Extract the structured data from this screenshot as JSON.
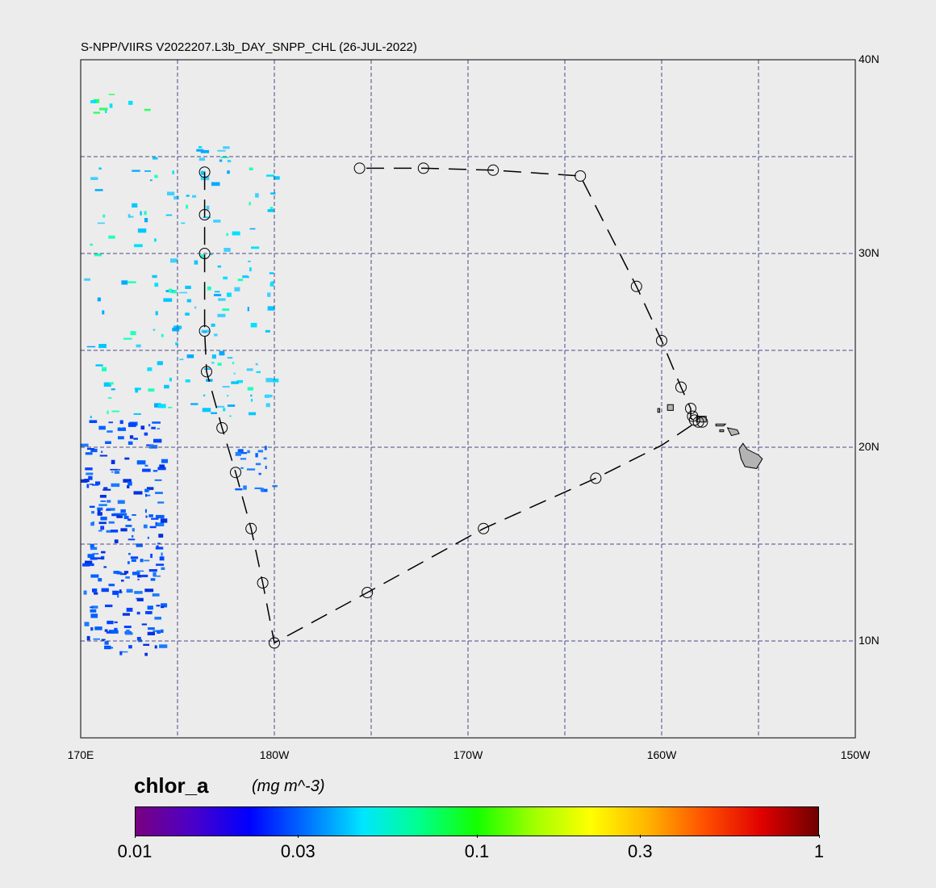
{
  "title": "S-NPP/VIIRS V2022207.L3b_DAY_SNPP_CHL (26-JUL-2022)",
  "map": {
    "lon_range": [
      170,
      210
    ],
    "lat_range": [
      5,
      40
    ],
    "lat_labels": [
      {
        "lat": 40,
        "text": "40N"
      },
      {
        "lat": 30,
        "text": "30N"
      },
      {
        "lat": 20,
        "text": "20N"
      },
      {
        "lat": 10,
        "text": "10N"
      }
    ],
    "lon_labels": [
      {
        "lon": 170,
        "text": "170E"
      },
      {
        "lon": 180,
        "text": "180W"
      },
      {
        "lon": 190,
        "text": "170W"
      },
      {
        "lon": 200,
        "text": "160W"
      },
      {
        "lon": 210,
        "text": "150W"
      }
    ],
    "grid_lons": [
      175,
      180,
      185,
      190,
      195,
      200,
      205
    ],
    "grid_lats": [
      10,
      15,
      20,
      25,
      30,
      35
    ],
    "grid_color": "#4a4a8a",
    "land_color": "#b3b3b3",
    "track": [
      [
        176.4,
        34.2
      ],
      [
        176.4,
        32.0
      ],
      [
        176.4,
        30.0
      ],
      [
        176.4,
        26.0
      ],
      [
        176.5,
        23.9
      ],
      [
        177.3,
        21.0
      ],
      [
        178.0,
        18.7
      ],
      [
        178.8,
        15.8
      ],
      [
        179.4,
        13.0
      ],
      [
        180.0,
        9.9
      ],
      [
        184.8,
        12.5
      ],
      [
        190.8,
        15.8
      ],
      [
        196.6,
        18.4
      ],
      [
        200.0,
        20.1
      ],
      [
        201.8,
        21.3
      ],
      [
        201.5,
        21.5
      ],
      [
        201.5,
        22.0
      ],
      [
        201.0,
        23.1
      ],
      [
        200.0,
        25.5
      ],
      [
        198.7,
        28.3
      ],
      [
        195.8,
        34.0
      ],
      [
        191.3,
        34.3
      ],
      [
        187.7,
        34.4
      ],
      [
        184.4,
        34.4
      ]
    ],
    "markers": [
      [
        176.4,
        34.2
      ],
      [
        176.4,
        32.0
      ],
      [
        176.4,
        30.0
      ],
      [
        176.4,
        26.0
      ],
      [
        176.5,
        23.9
      ],
      [
        177.3,
        21.0
      ],
      [
        178.0,
        18.7
      ],
      [
        178.8,
        15.8
      ],
      [
        179.4,
        13.0
      ],
      [
        180.0,
        9.9
      ],
      [
        184.8,
        12.5
      ],
      [
        190.8,
        15.8
      ],
      [
        196.6,
        18.4
      ],
      [
        201.0,
        23.1
      ],
      [
        200.0,
        25.5
      ],
      [
        198.7,
        28.3
      ],
      [
        195.8,
        34.0
      ],
      [
        191.3,
        34.3
      ],
      [
        187.7,
        34.4
      ],
      [
        184.4,
        34.4
      ],
      [
        201.5,
        22.0
      ],
      [
        201.6,
        21.6
      ],
      [
        201.7,
        21.4
      ],
      [
        201.9,
        21.3
      ],
      [
        202.1,
        21.3
      ]
    ]
  },
  "colorbar": {
    "variable": "chlor_a",
    "units": "(mg m^-3)",
    "scale": "log",
    "min": 0.01,
    "max": 1,
    "colors": [
      "#7a0080",
      "#4b00c8",
      "#0000ff",
      "#0070ff",
      "#00e6ff",
      "#00ff8c",
      "#14ff00",
      "#a0ff00",
      "#ffff00",
      "#ffb400",
      "#ff5000",
      "#e00000",
      "#700000"
    ],
    "ticks": [
      {
        "value": 0.01,
        "label": "0.01"
      },
      {
        "value": 0.03,
        "label": "0.03"
      },
      {
        "value": 0.1,
        "label": "0.1"
      },
      {
        "value": 0.3,
        "label": "0.3"
      },
      {
        "value": 1,
        "label": "1"
      }
    ]
  }
}
